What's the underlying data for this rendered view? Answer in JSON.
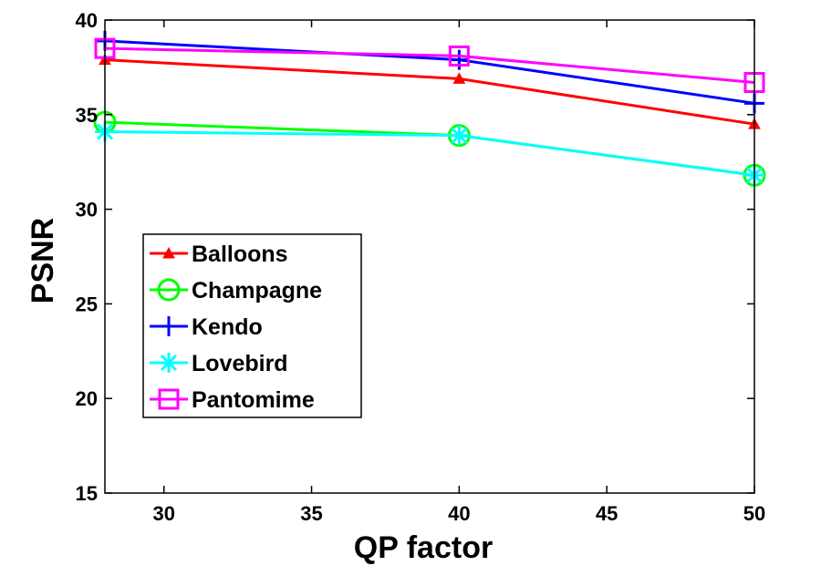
{
  "chart_data": {
    "type": "line",
    "title": "",
    "xlabel": "QP factor",
    "ylabel": "PSNR",
    "xlim": [
      28,
      50
    ],
    "ylim": [
      15,
      40
    ],
    "xticks": [
      30,
      35,
      40,
      45,
      50
    ],
    "yticks": [
      15,
      20,
      25,
      30,
      35,
      40
    ],
    "grid": false,
    "legend_position": "center-left",
    "x": [
      28,
      40,
      50
    ],
    "series": [
      {
        "name": "Balloons",
        "values": [
          37.9,
          36.9,
          34.5
        ],
        "color": "#ff0000",
        "marker": "triangle"
      },
      {
        "name": "Champagne",
        "values": [
          34.6,
          33.9,
          31.8
        ],
        "color": "#00ff00",
        "marker": "circle"
      },
      {
        "name": "Kendo",
        "values": [
          38.9,
          37.9,
          35.6
        ],
        "color": "#0000ff",
        "marker": "plus"
      },
      {
        "name": "Lovebird",
        "values": [
          34.1,
          33.9,
          31.8
        ],
        "color": "#00ffff",
        "marker": "asterisk"
      },
      {
        "name": "Pantomime",
        "values": [
          38.5,
          38.1,
          36.7
        ],
        "color": "#ff00ff",
        "marker": "square"
      }
    ]
  }
}
